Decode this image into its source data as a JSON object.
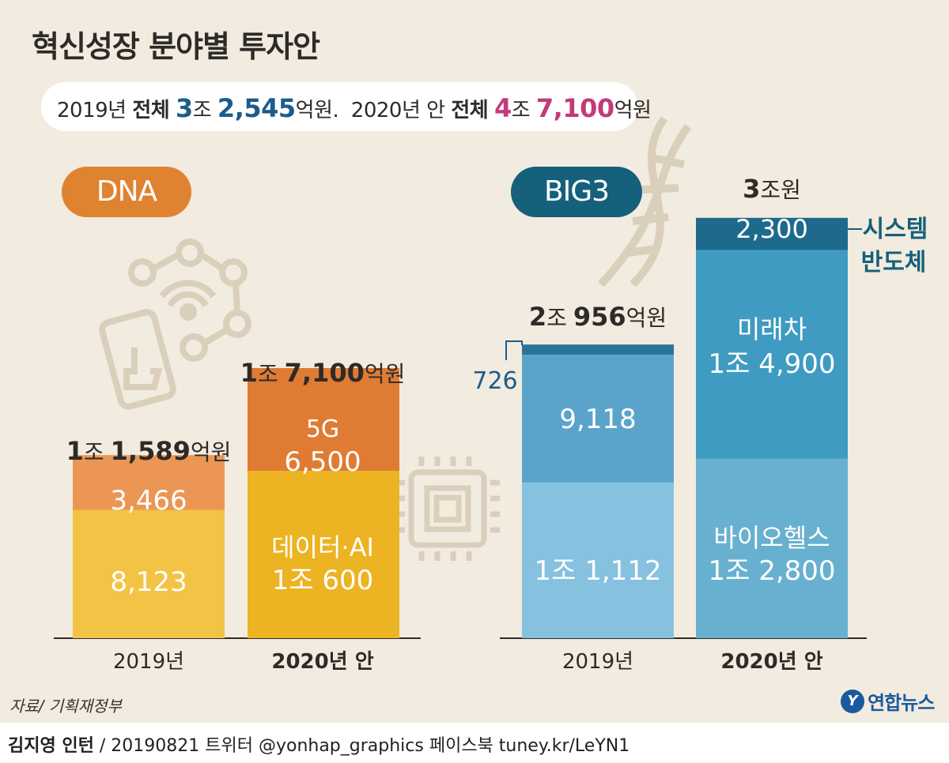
{
  "title": "혁신성장 분야별 투자안",
  "summary": {
    "y2019": "2019년",
    "total_label": "전체",
    "y2019_jo": "3",
    "jo": "조",
    "y2019_eok": "2,545",
    "eok_won_dot": "억원.",
    "y2020": "2020년 안",
    "y2020_jo": "4",
    "y2020_eok": "7,100",
    "eok_won": "억원"
  },
  "groups": {
    "dna": "DNA",
    "big3": "BIG3"
  },
  "colors": {
    "dna_pill": "#e08330",
    "big3_pill": "#15607b",
    "pink": "#c43a78",
    "blue": "#1c5c8c"
  },
  "chart_data": [
    {
      "type": "bar",
      "stacked": true,
      "unit": "억원",
      "group": "DNA",
      "categories": [
        "2019년",
        "2020년 안"
      ],
      "series": [
        {
          "name": "데이터·AI",
          "values": [
            8123,
            10600
          ],
          "labels": [
            "8,123",
            "1조 600"
          ],
          "colors": [
            "#f3c345",
            "#ecb322"
          ]
        },
        {
          "name": "5G",
          "values": [
            3466,
            6500
          ],
          "labels": [
            "3,466",
            "6,500"
          ],
          "colors": [
            "#eb9654",
            "#df7b33"
          ]
        }
      ],
      "totals": [
        {
          "jo": "1",
          "jo_unit": "조",
          "rest": "1,589",
          "unit": "억원"
        },
        {
          "jo": "1",
          "jo_unit": "조",
          "rest": "7,100",
          "unit": "억원"
        }
      ]
    },
    {
      "type": "bar",
      "stacked": true,
      "unit": "억원",
      "group": "BIG3",
      "categories": [
        "2019년",
        "2020년 안"
      ],
      "series": [
        {
          "name": "바이오헬스",
          "values": [
            11112,
            12800
          ],
          "labels": [
            "1조 1,112",
            "1조 2,800"
          ],
          "colors": [
            "#86c1df",
            "#68b0cf"
          ]
        },
        {
          "name": "미래차",
          "values": [
            9118,
            14900
          ],
          "labels": [
            "9,118",
            "1조 4,900"
          ],
          "colors": [
            "#5aa4cb",
            "#3f9bc2"
          ]
        },
        {
          "name": "시스템 반도체",
          "values": [
            726,
            2300
          ],
          "labels": [
            "726",
            "2,300"
          ],
          "colors": [
            "#2b7496",
            "#1e6a8c"
          ]
        }
      ],
      "totals": [
        {
          "jo": "2",
          "jo_unit": "조",
          "rest": "956",
          "unit": "억원"
        },
        {
          "jo": "3",
          "jo_unit": "조원",
          "rest": "",
          "unit": ""
        }
      ],
      "annotations": {
        "system_line1": "시스템",
        "system_line2": "반도체"
      }
    }
  ],
  "source": "자료/ 기획재정부",
  "logo": {
    "mark": "Y",
    "text": "연합뉴스"
  },
  "footer": {
    "author": "김지영 인턴",
    "rest": "/ 20190821 트위터 @yonhap_graphics 페이스북 tuney.kr/LeYN1"
  }
}
